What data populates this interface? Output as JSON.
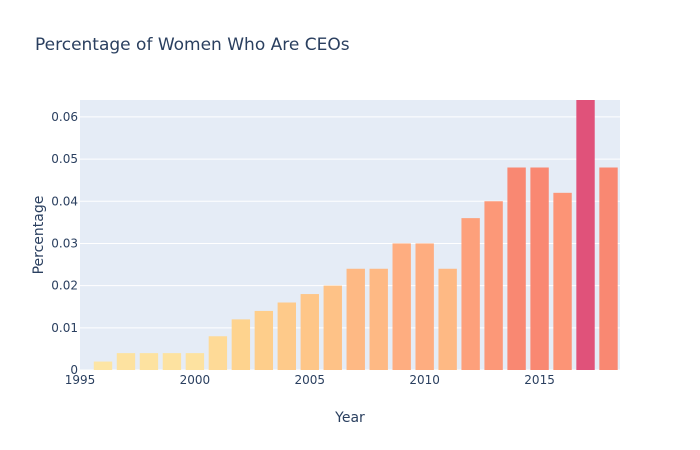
{
  "chart_data": {
    "type": "bar",
    "title": "Percentage of Women Who Are CEOs",
    "xlabel": "Year",
    "ylabel": "Percentage",
    "x": [
      1996,
      1997,
      1998,
      1999,
      2000,
      2001,
      2002,
      2003,
      2004,
      2005,
      2006,
      2007,
      2008,
      2009,
      2010,
      2011,
      2012,
      2013,
      2014,
      2015,
      2016,
      2017,
      2018
    ],
    "values": [
      0.002,
      0.004,
      0.004,
      0.004,
      0.004,
      0.008,
      0.012,
      0.014,
      0.016,
      0.018,
      0.02,
      0.024,
      0.024,
      0.03,
      0.03,
      0.024,
      0.036,
      0.04,
      0.048,
      0.048,
      0.042,
      0.064,
      0.048
    ],
    "xlim": [
      1995,
      2018.5
    ],
    "ylim": [
      0,
      0.064
    ],
    "x_ticks": [
      "1995",
      "2000",
      "2005",
      "2010",
      "2015"
    ],
    "y_ticks": [
      "0",
      "0.01",
      "0.02",
      "0.03",
      "0.04",
      "0.05",
      "0.06"
    ],
    "grid": true,
    "plot_background": "#e5ecf6",
    "color_scale": [
      "#fde9a9",
      "#fed18c",
      "#feb683",
      "#fd9b79",
      "#f8816f",
      "#e0527a"
    ]
  }
}
